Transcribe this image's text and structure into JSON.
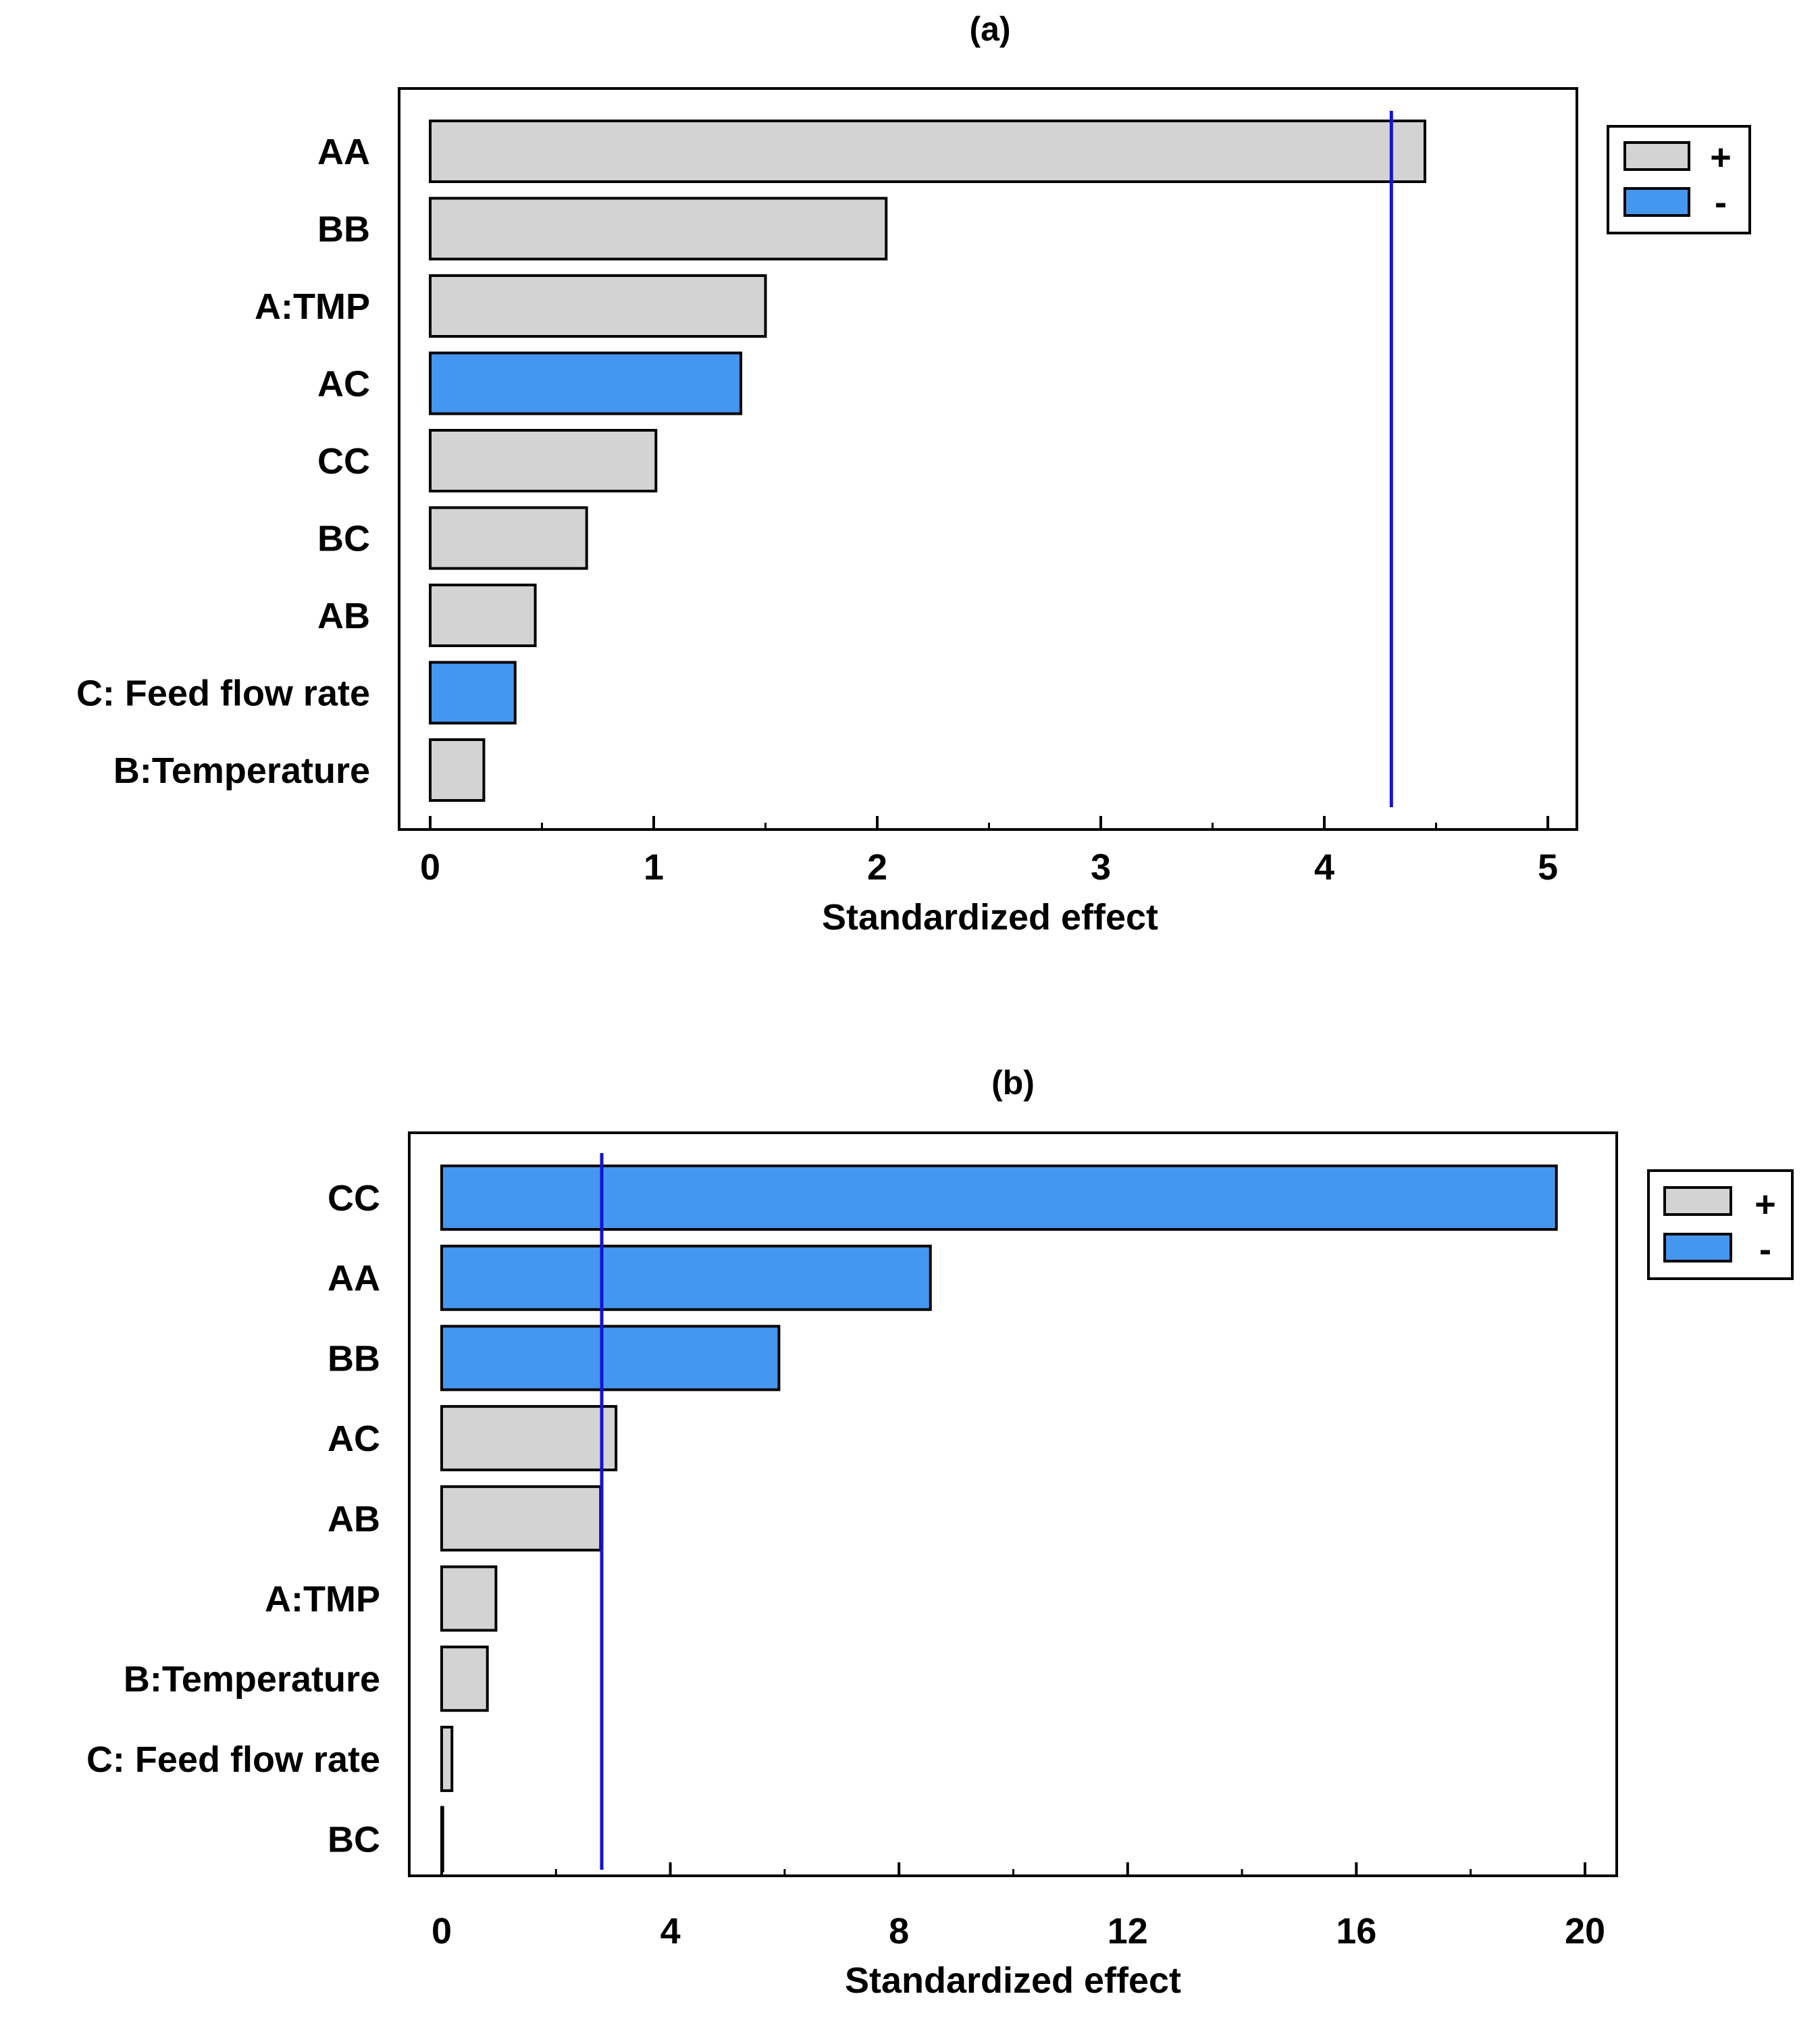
{
  "colors": {
    "positive": "#d3d3d3",
    "negative": "#4596ef",
    "reference_line": "#1414d2",
    "frame": "#000000"
  },
  "chart_data": [
    {
      "type": "bar",
      "orientation": "horizontal",
      "title": "(a)",
      "xlabel": "Standardized effect",
      "ylabel": "",
      "xlim": [
        0,
        5
      ],
      "xticks": [
        "0",
        "1",
        "2",
        "3",
        "4",
        "5"
      ],
      "xtick_values": [
        0,
        1,
        2,
        3,
        4,
        5
      ],
      "minor_step": 0.5,
      "reference_line": 4.3,
      "legend_position": "top-right",
      "legend": [
        {
          "label": "+",
          "sign": "positive"
        },
        {
          "label": "-",
          "sign": "negative"
        }
      ],
      "categories": [
        "AA",
        "BB",
        "A:TMP",
        "AC",
        "CC",
        "BC",
        "AB",
        "C: Feed flow rate",
        "B:Temperature"
      ],
      "values": [
        4.45,
        2.04,
        1.5,
        1.39,
        1.01,
        0.7,
        0.47,
        0.38,
        0.24
      ],
      "signs": [
        "positive",
        "positive",
        "positive",
        "negative",
        "positive",
        "positive",
        "positive",
        "negative",
        "positive"
      ]
    },
    {
      "type": "bar",
      "orientation": "horizontal",
      "title": "(b)",
      "xlabel": "Standardized effect",
      "ylabel": "",
      "xlim": [
        0,
        20
      ],
      "xticks": [
        "0",
        "4",
        "8",
        "12",
        "16",
        "20"
      ],
      "xtick_values": [
        0,
        4,
        8,
        12,
        16,
        20
      ],
      "minor_step": 2,
      "reference_line": 2.8,
      "legend_position": "top-right",
      "legend": [
        {
          "label": "+",
          "sign": "positive"
        },
        {
          "label": "-",
          "sign": "negative"
        }
      ],
      "categories": [
        "CC",
        "AA",
        "BB",
        "AC",
        "AB",
        "A:TMP",
        "B:Temperature",
        "C: Feed flow rate",
        "BC"
      ],
      "values": [
        19.5,
        8.55,
        5.9,
        3.05,
        2.78,
        0.95,
        0.8,
        0.18,
        0.02
      ],
      "signs": [
        "negative",
        "negative",
        "negative",
        "positive",
        "positive",
        "positive",
        "positive",
        "positive",
        "positive"
      ]
    }
  ]
}
